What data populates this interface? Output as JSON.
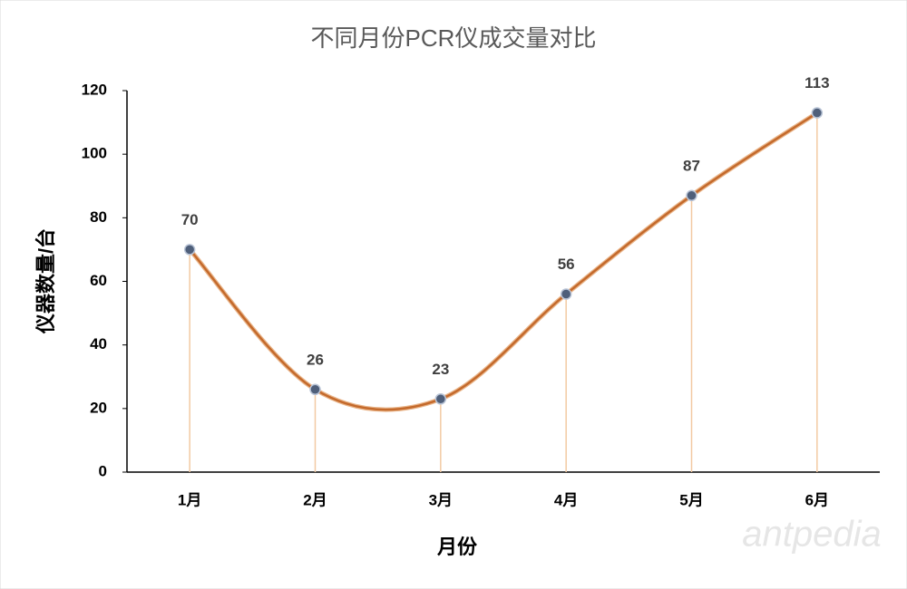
{
  "chart_data": {
    "type": "line",
    "title": "不同月份PCR仪成交量对比",
    "x_label": "月份",
    "y_label": "仪器数量/台",
    "categories": [
      "1月",
      "2月",
      "3月",
      "4月",
      "5月",
      "6月"
    ],
    "values": [
      70,
      26,
      23,
      56,
      87,
      113
    ],
    "color": "#c46a2c",
    "marker_color": "#4f5f7a",
    "drop_line_color": "#f2c9a2",
    "smooth": true,
    "data_labels": true,
    "ylim": [
      0,
      120
    ],
    "yticks": [
      0,
      20,
      40,
      60,
      80,
      100,
      120
    ],
    "watermark": "antpedia"
  }
}
